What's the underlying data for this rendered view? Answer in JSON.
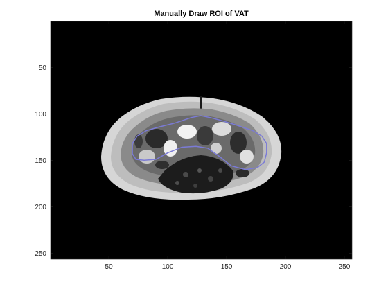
{
  "figure": {
    "title": "Manually Draw ROI of VAT"
  },
  "axes": {
    "x_range": [
      0.5,
      256.5
    ],
    "y_range": [
      0.5,
      256.5
    ],
    "y_direction": "reverse",
    "x_ticks": [
      50,
      100,
      150,
      200,
      250
    ],
    "y_ticks": [
      50,
      100,
      150,
      200,
      250
    ]
  },
  "image": {
    "modality": "axial abdominal CT slice, grayscale",
    "background": "#000000"
  },
  "roi": {
    "stroke_color": "#7b7bd6",
    "points_data_units": [
      [
        70,
        143
      ],
      [
        70,
        132
      ],
      [
        74,
        124
      ],
      [
        82,
        118
      ],
      [
        93,
        114
      ],
      [
        106,
        110
      ],
      [
        120,
        104
      ],
      [
        128,
        102
      ],
      [
        136,
        104
      ],
      [
        145,
        107
      ],
      [
        158,
        112
      ],
      [
        172,
        118
      ],
      [
        180,
        124
      ],
      [
        184,
        132
      ],
      [
        184,
        142
      ],
      [
        182,
        152
      ],
      [
        176,
        158
      ],
      [
        166,
        160
      ],
      [
        154,
        156
      ],
      [
        144,
        146
      ],
      [
        134,
        137
      ],
      [
        124,
        135
      ],
      [
        112,
        136
      ],
      [
        100,
        142
      ],
      [
        90,
        149
      ],
      [
        80,
        150
      ],
      [
        73,
        149
      ],
      [
        70,
        143
      ]
    ]
  }
}
